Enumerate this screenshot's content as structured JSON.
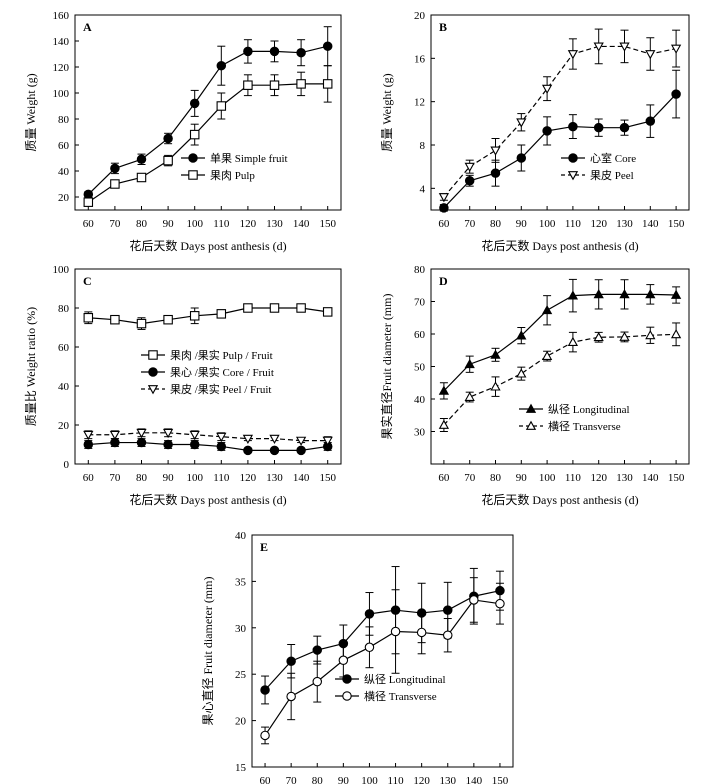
{
  "chart_data": [
    {
      "panel": "A",
      "type": "line",
      "xlabel": "花后天数 Days post anthesis (d)",
      "ylabel": "质量 Weight (g)",
      "xlim": [
        55,
        155
      ],
      "ylim": [
        10,
        160
      ],
      "xticks": [
        60,
        70,
        80,
        90,
        100,
        110,
        120,
        130,
        140,
        150
      ],
      "yticks": [
        20,
        40,
        60,
        80,
        100,
        120,
        140,
        160
      ],
      "x": [
        60,
        70,
        80,
        90,
        100,
        110,
        120,
        130,
        140,
        150
      ],
      "series": [
        {
          "name": "单果 Simple fruit",
          "marker": "circle-filled",
          "style": "solid",
          "values": [
            22,
            42,
            49,
            65,
            92,
            121,
            132,
            132,
            131,
            136
          ],
          "err": [
            2,
            4,
            4,
            4,
            10,
            15,
            9,
            8,
            10,
            15
          ]
        },
        {
          "name": "果肉 Pulp",
          "marker": "square-open",
          "style": "solid",
          "values": [
            16,
            30,
            35,
            48,
            68,
            90,
            106,
            106,
            107,
            107
          ],
          "err": [
            2,
            3,
            2,
            4,
            8,
            10,
            8,
            8,
            9,
            14
          ]
        }
      ],
      "legend": "right"
    },
    {
      "panel": "B",
      "type": "line",
      "xlabel": "花后天数 Days post anthesis (d)",
      "ylabel": "质量 Weight (g)",
      "xlim": [
        55,
        155
      ],
      "ylim": [
        2,
        20
      ],
      "xticks": [
        60,
        70,
        80,
        90,
        100,
        110,
        120,
        130,
        140,
        150
      ],
      "yticks": [
        4,
        8,
        12,
        16,
        20
      ],
      "x": [
        60,
        70,
        80,
        90,
        100,
        110,
        120,
        130,
        140,
        150
      ],
      "series": [
        {
          "name": "心室 Core",
          "marker": "circle-filled",
          "style": "solid",
          "values": [
            2.2,
            4.7,
            5.4,
            6.8,
            9.3,
            9.7,
            9.6,
            9.6,
            10.2,
            12.7
          ],
          "err": [
            0.3,
            0.5,
            1.2,
            1.2,
            1.3,
            1.1,
            0.8,
            0.7,
            1.5,
            2.2
          ]
        },
        {
          "name": "果皮 Peel",
          "marker": "triangle-down-open",
          "style": "dashed",
          "values": [
            3.2,
            6.0,
            7.5,
            10.1,
            13.2,
            16.4,
            17.1,
            17.1,
            16.4,
            16.9
          ],
          "err": [
            0.3,
            0.6,
            1.1,
            0.8,
            1.1,
            1.4,
            1.6,
            1.5,
            1.5,
            1.7
          ]
        }
      ],
      "legend": "right"
    },
    {
      "panel": "C",
      "type": "line",
      "xlabel": "花后天数 Days post anthesis (d)",
      "ylabel": "质量比 Weight ratio (%)",
      "xlim": [
        55,
        155
      ],
      "ylim": [
        0,
        100
      ],
      "xticks": [
        60,
        70,
        80,
        90,
        100,
        110,
        120,
        130,
        140,
        150
      ],
      "yticks": [
        0,
        20,
        40,
        60,
        80,
        100
      ],
      "x": [
        60,
        70,
        80,
        90,
        100,
        110,
        120,
        130,
        140,
        150
      ],
      "series": [
        {
          "name": "果肉 /果实 Pulp / Fruit",
          "marker": "square-open",
          "style": "solid",
          "values": [
            75,
            74,
            72,
            74,
            76,
            77,
            80,
            80,
            80,
            78
          ],
          "err": [
            3,
            1,
            3,
            2,
            4,
            2,
            1,
            1,
            1,
            2
          ]
        },
        {
          "name": "果心 /果实 Core / Fruit",
          "marker": "circle-filled",
          "style": "solid",
          "values": [
            10,
            11,
            11,
            10,
            10,
            9,
            7,
            7,
            7,
            9
          ],
          "err": [
            2,
            2,
            2,
            2,
            2,
            2,
            1,
            1,
            1,
            2
          ]
        },
        {
          "name": "果皮 /果实 Peel / Fruit",
          "marker": "triangle-down-open",
          "style": "dashed",
          "values": [
            15,
            15,
            16,
            16,
            15,
            14,
            13,
            13,
            12,
            12
          ],
          "err": [
            2,
            2,
            2,
            2,
            2,
            2,
            1,
            1,
            1,
            2
          ]
        }
      ],
      "legend": "bottom-right"
    },
    {
      "panel": "D",
      "type": "line",
      "xlabel": "花后天数 Days post anthesis (d)",
      "ylabel": "果实直径Fruit diameter (mm)",
      "xlim": [
        55,
        155
      ],
      "ylim": [
        20,
        80
      ],
      "xticks": [
        60,
        70,
        80,
        90,
        100,
        110,
        120,
        130,
        140,
        150
      ],
      "yticks": [
        30,
        40,
        50,
        60,
        70,
        80
      ],
      "x": [
        60,
        70,
        80,
        90,
        100,
        110,
        120,
        130,
        140,
        150
      ],
      "series": [
        {
          "name": "纵径 Longitudinal",
          "marker": "triangle-up-filled",
          "style": "solid",
          "values": [
            42.5,
            50.7,
            53.6,
            59.5,
            67.3,
            71.8,
            72.2,
            72.2,
            72.2,
            72.0
          ],
          "err": [
            2.5,
            2.5,
            2,
            2.5,
            4.5,
            5,
            4.5,
            4.5,
            3,
            2.5
          ]
        },
        {
          "name": "横径 Transverse",
          "marker": "triangle-up-open",
          "style": "dashed",
          "values": [
            32.0,
            40.6,
            43.8,
            47.8,
            53.2,
            57.5,
            59.0,
            59.1,
            59.6,
            59.9
          ],
          "err": [
            2,
            1.5,
            3,
            2,
            1.5,
            3,
            1.5,
            1.5,
            2.5,
            3.5
          ]
        }
      ],
      "legend": "bottom-right"
    },
    {
      "panel": "E",
      "type": "line",
      "xlabel": "花后天数 Days post anthesis (d)",
      "ylabel": "果心直径 Fruit diameter (mm)",
      "xlim": [
        55,
        155
      ],
      "ylim": [
        15,
        40
      ],
      "xticks": [
        60,
        70,
        80,
        90,
        100,
        110,
        120,
        130,
        140,
        150
      ],
      "yticks": [
        15,
        20,
        25,
        30,
        35,
        40
      ],
      "x": [
        60,
        70,
        80,
        90,
        100,
        110,
        120,
        130,
        140,
        150
      ],
      "series": [
        {
          "name": "纵径 Longitudinal",
          "marker": "circle-filled",
          "style": "solid",
          "values": [
            23.3,
            26.4,
            27.6,
            28.3,
            31.5,
            31.9,
            31.6,
            31.9,
            33.4,
            34.0
          ],
          "err": [
            1.5,
            1.8,
            1.5,
            2,
            2.3,
            4.7,
            3.2,
            3,
            3,
            2.1
          ]
        },
        {
          "name": "横径 Transverse",
          "marker": "circle-open",
          "style": "solid",
          "values": [
            18.4,
            22.6,
            24.2,
            26.5,
            27.9,
            29.6,
            29.5,
            29.2,
            33.0,
            32.6
          ],
          "err": [
            0.9,
            2.5,
            2.2,
            1.8,
            2.2,
            4.5,
            2.3,
            1.8,
            2.4,
            2.2
          ]
        }
      ],
      "legend": "bottom-right"
    }
  ]
}
